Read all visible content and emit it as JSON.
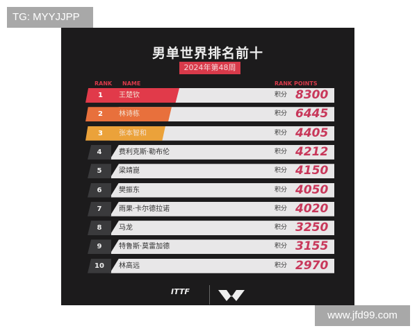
{
  "watermark_left": "TG: MYYJJPP",
  "watermark_right": "www.jfd99.com",
  "title": "男单世界排名前十",
  "subtitle": "2024年第48周",
  "headers": {
    "rank": "RANK",
    "name": "NAME",
    "points": "RANK POINTS"
  },
  "points_label": "积分",
  "colors": {
    "rank1": "#e13a4a",
    "rank2": "#e8703c",
    "rank3": "#eba23a",
    "points": "#c8375a"
  },
  "rows": [
    {
      "rank": "1",
      "name": "王楚钦",
      "points": "8300"
    },
    {
      "rank": "2",
      "name": "林诗栋",
      "points": "6445"
    },
    {
      "rank": "3",
      "name": "张本智和",
      "points": "4405"
    },
    {
      "rank": "4",
      "name": "费利克斯·勒布伦",
      "points": "4212"
    },
    {
      "rank": "5",
      "name": "梁靖崑",
      "points": "4150"
    },
    {
      "rank": "6",
      "name": "樊振东",
      "points": "4050"
    },
    {
      "rank": "7",
      "name": "雨果·卡尔德拉诺",
      "points": "4020"
    },
    {
      "rank": "8",
      "name": "马龙",
      "points": "3250"
    },
    {
      "rank": "9",
      "name": "特鲁斯·莫雷加德",
      "points": "3155"
    },
    {
      "rank": "10",
      "name": "林高远",
      "points": "2970"
    }
  ],
  "logos": {
    "itt": "ITTF",
    "wtt": "WTT"
  }
}
